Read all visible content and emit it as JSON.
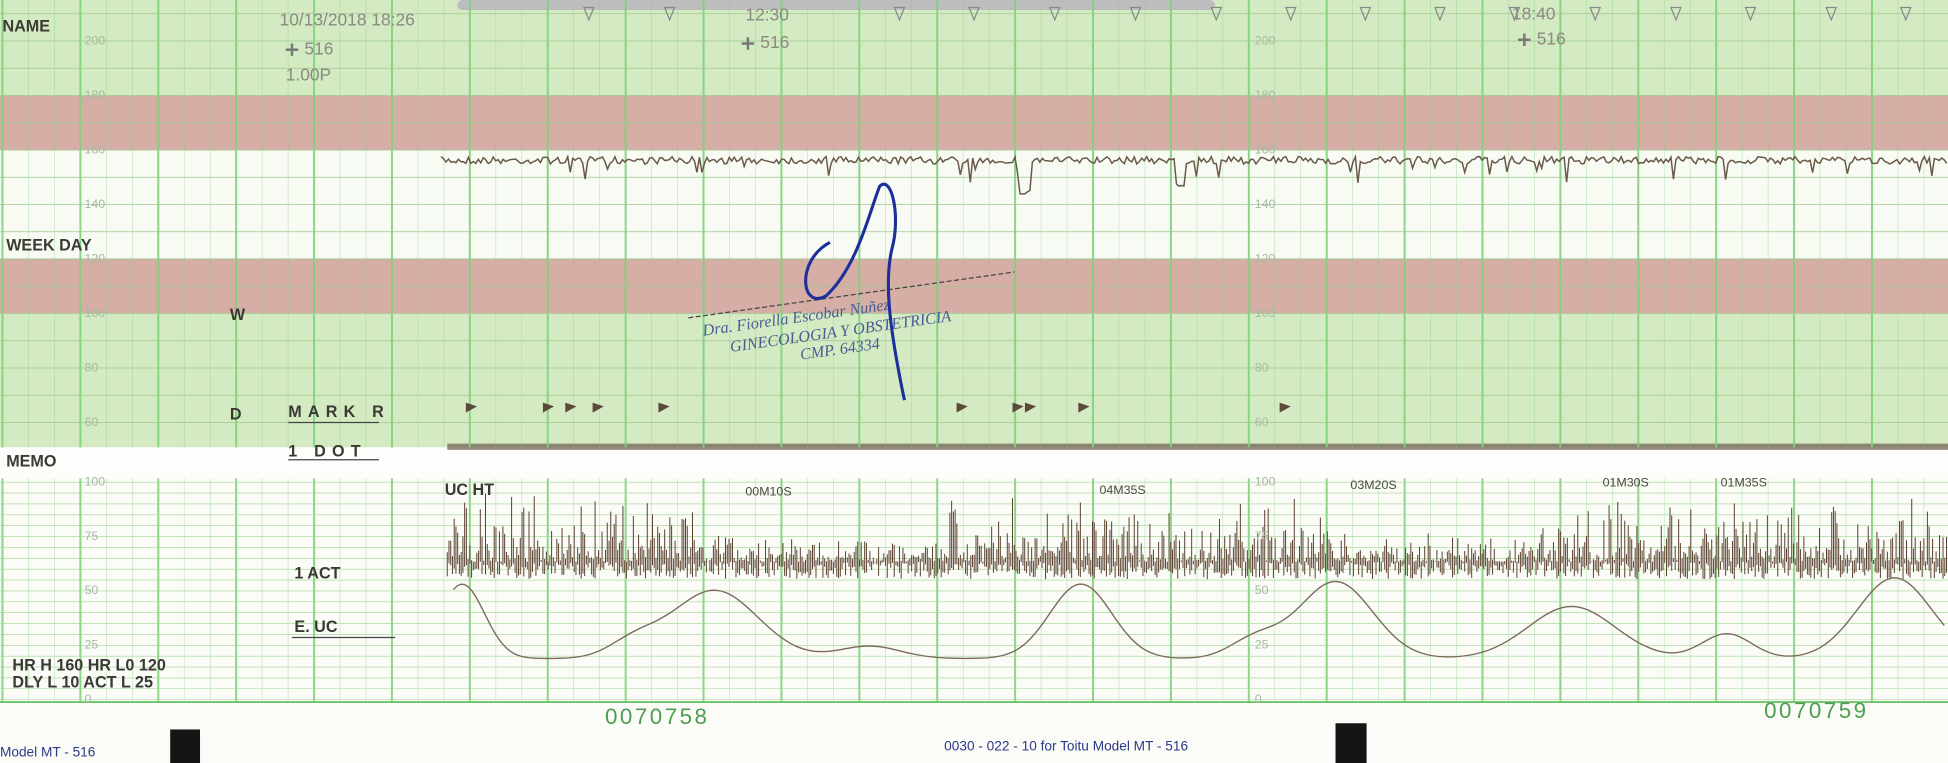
{
  "header": {
    "name_label": "NAME",
    "date_time": "10/13/2018 18:26",
    "probe": "516",
    "mode": "1.00P"
  },
  "time_marks": [
    {
      "time": "12:30",
      "probe": "516"
    },
    {
      "time": "18:40",
      "probe": "516"
    }
  ],
  "fhr_scale": [
    200,
    180,
    160,
    140,
    120,
    100,
    80,
    60
  ],
  "uc_scale": [
    100,
    75,
    50,
    25,
    0
  ],
  "labels": {
    "week_day": "WEEK DAY",
    "w": "W",
    "d": "D",
    "mark": "MARK R",
    "memo": "MEMO",
    "dot": "1 DOT",
    "uc_ht": "UC HT",
    "act": "1 ACT",
    "e_uc": "E. UC"
  },
  "durations": [
    "00M10S",
    "04M35S",
    "03M20S",
    "01M30S",
    "01M35S"
  ],
  "settings": [
    "HR H 160  HR L0 120",
    "DLY L 10  ACT L 25"
  ],
  "stamp": [
    "Dra. Fiorella Escobar Nuñez",
    "GINECOLOGIA Y OBSTETRICIA",
    "CMP. 64334"
  ],
  "page_numbers": [
    "0070758",
    "0070759"
  ],
  "footer": [
    "Model MT - 516",
    "0030 - 022 - 10   for Toitu Model MT - 516"
  ]
}
